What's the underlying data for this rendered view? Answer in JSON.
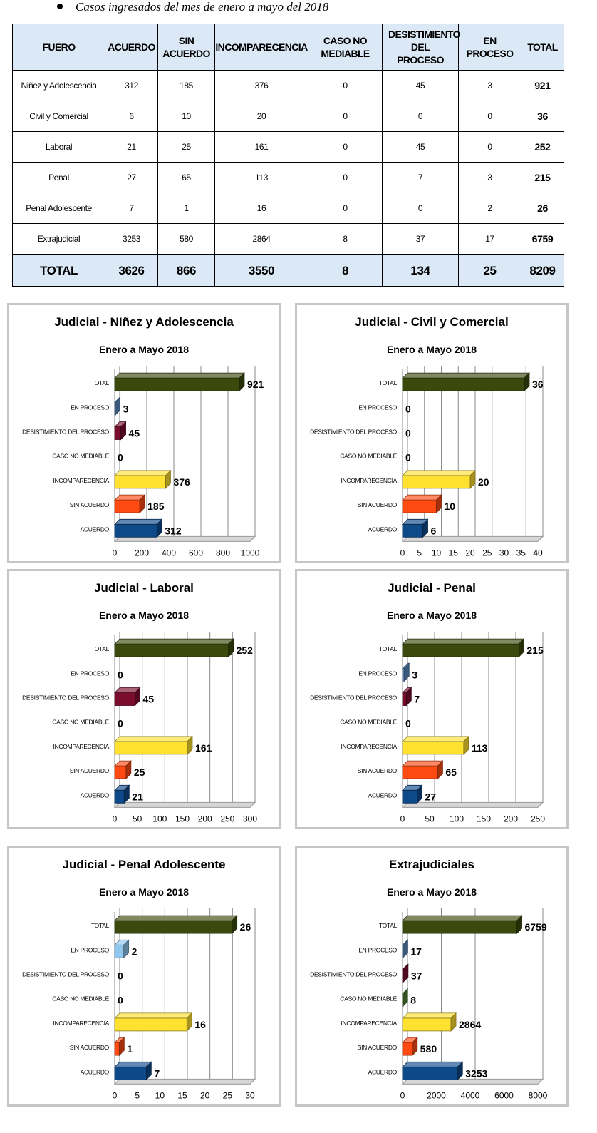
{
  "heading": "Casos ingresados del mes de enero a mayo del 2018",
  "table": {
    "headers": [
      "FUERO",
      "ACUERDO",
      "SIN ACUERDO",
      "INCOMPARECENCIA",
      "CASO NO MEDIABLE",
      "DESISTIMIENTO DEL PROCESO",
      "EN PROCESO",
      "TOTAL"
    ],
    "rows": [
      [
        "Niñez y Adolescencia",
        "312",
        "185",
        "376",
        "0",
        "45",
        "3",
        "921"
      ],
      [
        "Civil y Comercial",
        "6",
        "10",
        "20",
        "0",
        "0",
        "0",
        "36"
      ],
      [
        "Laboral",
        "21",
        "25",
        "161",
        "0",
        "45",
        "0",
        "252"
      ],
      [
        "Penal",
        "27",
        "65",
        "113",
        "0",
        "7",
        "3",
        "215"
      ],
      [
        "Penal Adolescente",
        "7",
        "1",
        "16",
        "0",
        "0",
        "2",
        "26"
      ],
      [
        "Extrajudicial",
        "3253",
        "580",
        "2864",
        "8",
        "37",
        "17",
        "6759"
      ]
    ],
    "total_row": [
      "TOTAL",
      "3626",
      "866",
      "3550",
      "8",
      "134",
      "25",
      "8209"
    ]
  },
  "colors": {
    "TOTAL": "#3b4a0c",
    "EN PROCESO": "#5b8bbd",
    "EN PROCESO light": "#8fc7ee",
    "DESISTIMIENTO DEL PROCESO": "#7a0c2e",
    "CASO NO MEDIABLE": "#4b7c2c",
    "INCOMPARECENCIA": "#ffe12f",
    "SIN ACUERDO": "#ff4a12",
    "ACUERDO": "#0e4a8a",
    "header_fill": "#dae9f5",
    "panel_border": "#c6c6c6"
  },
  "chart_data": [
    {
      "type": "bar",
      "orientation": "horizontal",
      "title": "Judicial - NIñez y Adolescencia",
      "subtitle": "Enero a Mayo 2018",
      "categories": [
        "TOTAL",
        "EN PROCESO",
        "DESISTIMIENTO DEL PROCESO",
        "CASO NO MEDIABLE",
        "INCOMPARECENCIA",
        "SIN ACUERDO",
        "ACUERDO"
      ],
      "values": [
        921,
        3,
        45,
        0,
        376,
        185,
        312
      ],
      "xlim": [
        0,
        1000
      ],
      "xticks": [
        0,
        200,
        400,
        600,
        800,
        1000
      ],
      "grid": true,
      "en_proceso_color": "#5b8bbd"
    },
    {
      "type": "bar",
      "orientation": "horizontal",
      "title": "Judicial - Civil y Comercial",
      "subtitle": "Enero a Mayo 2018",
      "categories": [
        "TOTAL",
        "EN PROCESO",
        "DESISTIMIENTO DEL PROCESO",
        "CASO NO MEDIABLE",
        "INCOMPARECENCIA",
        "SIN ACUERDO",
        "ACUERDO"
      ],
      "values": [
        36,
        0,
        0,
        0,
        20,
        10,
        6
      ],
      "xlim": [
        0,
        40
      ],
      "xticks": [
        0,
        5,
        10,
        15,
        20,
        25,
        30,
        35,
        40
      ],
      "grid": true,
      "en_proceso_color": "#5b8bbd"
    },
    {
      "type": "bar",
      "orientation": "horizontal",
      "title": "Judicial - Laboral",
      "subtitle": "Enero a Mayo 2018",
      "categories": [
        "TOTAL",
        "EN PROCESO",
        "DESISTIMIENTO DEL PROCESO",
        "CASO NO MEDIABLE",
        "INCOMPARECENCIA",
        "SIN ACUERDO",
        "ACUERDO"
      ],
      "values": [
        252,
        0,
        45,
        0,
        161,
        25,
        21
      ],
      "xlim": [
        0,
        300
      ],
      "xticks": [
        0,
        50,
        100,
        150,
        200,
        250,
        300
      ],
      "grid": true,
      "en_proceso_color": "#5b8bbd"
    },
    {
      "type": "bar",
      "orientation": "horizontal",
      "title": "Judicial - Penal",
      "subtitle": "Enero a Mayo 2018",
      "categories": [
        "TOTAL",
        "EN PROCESO",
        "DESISTIMIENTO DEL PROCESO",
        "CASO NO MEDIABLE",
        "INCOMPARECENCIA",
        "SIN ACUERDO",
        "ACUERDO"
      ],
      "values": [
        215,
        3,
        7,
        0,
        113,
        65,
        27
      ],
      "xlim": [
        0,
        250
      ],
      "xticks": [
        0,
        50,
        100,
        150,
        200,
        250
      ],
      "grid": true,
      "en_proceso_color": "#5b8bbd"
    },
    {
      "type": "bar",
      "orientation": "horizontal",
      "title": "Judicial - Penal Adolescente",
      "subtitle": "Enero a Mayo 2018",
      "categories": [
        "TOTAL",
        "EN PROCESO",
        "DESISTIMIENTO DEL PROCESO",
        "CASO NO MEDIABLE",
        "INCOMPARECENCIA",
        "SIN ACUERDO",
        "ACUERDO"
      ],
      "values": [
        26,
        2,
        0,
        0,
        16,
        1,
        7
      ],
      "xlim": [
        0,
        30
      ],
      "xticks": [
        0,
        5,
        10,
        15,
        20,
        25,
        30
      ],
      "grid": true,
      "en_proceso_color": "#8fc7ee"
    },
    {
      "type": "bar",
      "orientation": "horizontal",
      "title": "Extrajudiciales",
      "subtitle": "Enero a Mayo 2018",
      "categories": [
        "TOTAL",
        "EN PROCESO",
        "DESISTIMIENTO DEL PROCESO",
        "CASO NO MEDIABLE",
        "INCOMPARECENCIA",
        "SIN ACUERDO",
        "ACUERDO"
      ],
      "values": [
        6759,
        17,
        37,
        8,
        2864,
        580,
        3253
      ],
      "xlim": [
        0,
        8000
      ],
      "xticks": [
        0,
        2000,
        4000,
        6000,
        8000
      ],
      "grid": true,
      "en_proceso_color": "#5b8bbd"
    }
  ]
}
